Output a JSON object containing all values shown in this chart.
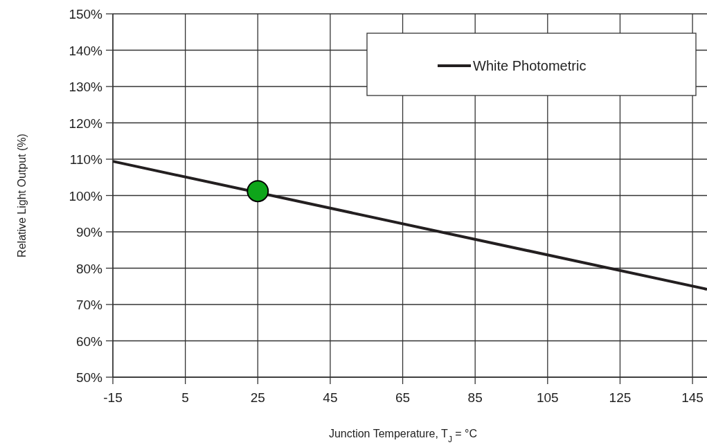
{
  "chart_data": {
    "type": "line",
    "xlabel": "Junction Temperature, T$_{J}$ = °C",
    "ylabel": "Relative Light Output (%)",
    "series": [
      {
        "name": "White Photometric",
        "color": "#231f20",
        "x": [
          -15,
          149
        ],
        "values": [
          109.4,
          74.2
        ]
      },
      {
        "type": "scatter",
        "color": "#0ea51a",
        "x": [
          25
        ],
        "values": [
          101.2
        ],
        "marker": "circle"
      }
    ],
    "xlim": [
      -15,
      149
    ],
    "xticks": [
      -15,
      5,
      25,
      45,
      65,
      85,
      105,
      125,
      145
    ],
    "ylim": [
      50,
      150
    ],
    "yticks": [
      {
        "value": 50,
        "label": "50%"
      },
      {
        "value": 60,
        "label": "60%"
      },
      {
        "value": 70,
        "label": "70%"
      },
      {
        "value": 80,
        "label": "80%"
      },
      {
        "value": 90,
        "label": "90%"
      },
      {
        "value": 100,
        "label": "100%"
      },
      {
        "value": 110,
        "label": "110%"
      },
      {
        "value": 120,
        "label": "120%"
      },
      {
        "value": 130,
        "label": "130%"
      },
      {
        "value": 140,
        "label": "140%"
      },
      {
        "value": 150,
        "label": "150%"
      }
    ],
    "grid": true,
    "legend": "top right"
  }
}
